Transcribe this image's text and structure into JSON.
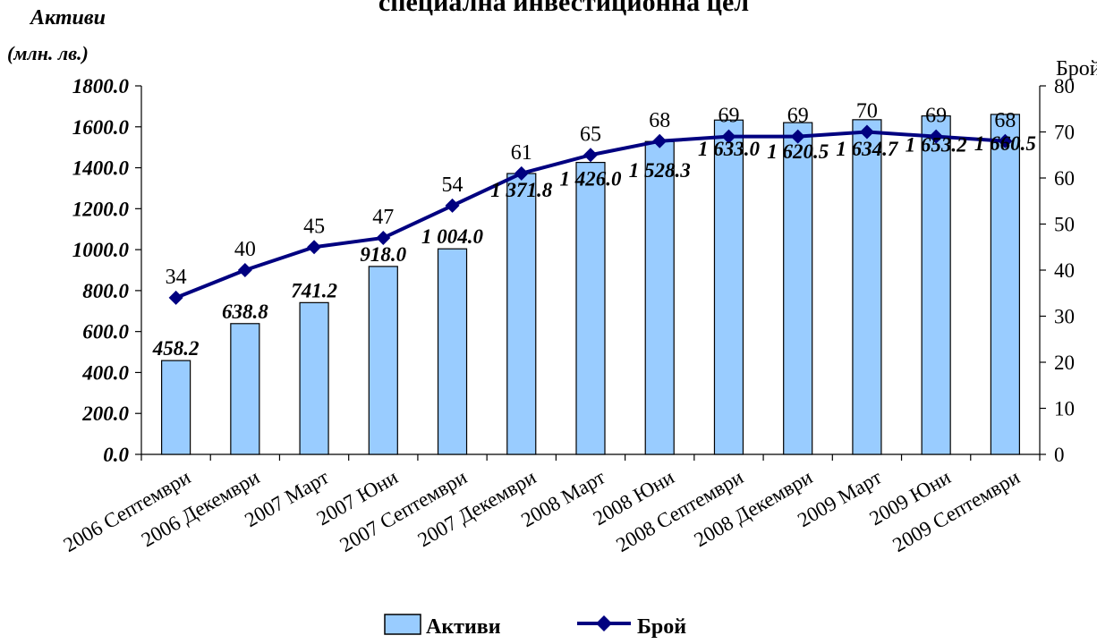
{
  "chart_data": {
    "type": "bar",
    "title": "специална инвестиционна цел",
    "y_left_label_line1": "Активи",
    "y_left_label_line2": "(млн. лв.)",
    "y_right_label": "Брой",
    "y_left_lim": [
      0,
      1800
    ],
    "y_right_lim": [
      0,
      80
    ],
    "y_left_ticks": [
      "0.0",
      "200.0",
      "400.0",
      "600.0",
      "800.0",
      "1000.0",
      "1200.0",
      "1400.0",
      "1600.0",
      "1800.0"
    ],
    "y_right_ticks": [
      "0",
      "10",
      "20",
      "30",
      "40",
      "50",
      "60",
      "70",
      "80"
    ],
    "categories": [
      "2006 Септември",
      "2006 Декември",
      "2007 Март",
      "2007 Юни",
      "2007 Септември",
      "2007 Декември",
      "2008 Март",
      "2008 Юни",
      "2008 Септември",
      "2008 Декември",
      "2009 Март",
      "2009 Юни",
      "2009 Септември"
    ],
    "series": [
      {
        "name": "Активи",
        "type": "bar",
        "axis": "left",
        "color": "#99ccff",
        "values": [
          458.2,
          638.8,
          741.2,
          918.0,
          1004.0,
          1371.8,
          1426.0,
          1528.3,
          1633.0,
          1620.5,
          1634.7,
          1653.2,
          1660.5
        ],
        "labels": [
          "458.2",
          "638.8",
          "741.2",
          "918.0",
          "1 004.0",
          "1 371.8",
          "1 426.0",
          "1 528.3",
          "1 633.0",
          "1 620.5",
          "1 634.7",
          "1 653.2",
          "1 660.5"
        ]
      },
      {
        "name": "Брой",
        "type": "line",
        "axis": "right",
        "color": "#000080",
        "values": [
          34,
          40,
          45,
          47,
          54,
          61,
          65,
          68,
          69,
          69,
          70,
          69,
          68
        ]
      }
    ],
    "grid": false,
    "legend_position": "bottom"
  }
}
